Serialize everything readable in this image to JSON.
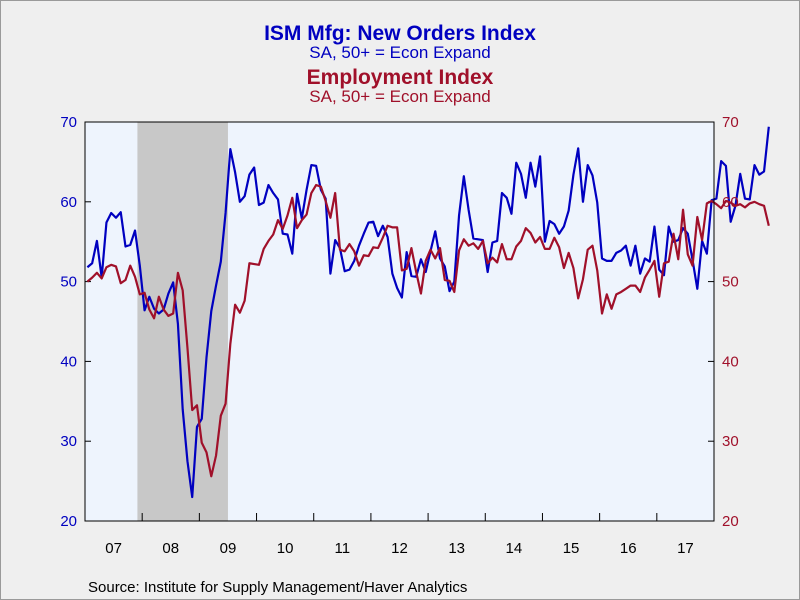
{
  "chart_data": {
    "type": "line",
    "titles": [
      {
        "text": "ISM Mfg: New Orders Index",
        "color": "#0000c0"
      },
      {
        "text": "SA, 50+ = Econ Expand",
        "color": "#0000c0"
      },
      {
        "text": "Employment Index",
        "color": "#a0102a"
      },
      {
        "text": "SA, 50+ = Econ Expand",
        "color": "#a0102a"
      }
    ],
    "source": "Source:  Institute for Supply Management/Haver Analytics",
    "x_labels": [
      "07",
      "08",
      "09",
      "10",
      "11",
      "12",
      "13",
      "14",
      "15",
      "16",
      "17"
    ],
    "x_start": "2007-01",
    "x_end": "2017-12",
    "ylim": [
      20,
      70
    ],
    "yticks": [
      20,
      30,
      40,
      50,
      60,
      70
    ],
    "recession": {
      "start": "2007-12",
      "end": "2009-06"
    },
    "background": "#eef4fd",
    "series": [
      {
        "name": "ISM Mfg: New Orders Index",
        "color": "#0000c0",
        "axis": "left",
        "values": [
          51.8,
          52.3,
          55.1,
          50.5,
          57.4,
          58.6,
          58.0,
          58.7,
          54.4,
          54.6,
          56.4,
          52.0,
          46.4,
          48.1,
          46.6,
          46.0,
          46.5,
          48.5,
          49.9,
          44.7,
          34.0,
          27.5,
          23.0,
          31.8,
          32.8,
          40.5,
          46.3,
          49.5,
          52.5,
          58.6,
          66.6,
          63.7,
          60.0,
          60.7,
          63.4,
          64.3,
          59.6,
          59.9,
          62.1,
          61.1,
          60.3,
          56.0,
          55.9,
          53.5,
          61.0,
          57.9,
          61.5,
          64.6,
          64.5,
          61.5,
          60.4,
          51.0,
          55.2,
          54.2,
          51.3,
          51.5,
          52.6,
          54.5,
          56.0,
          57.4,
          57.5,
          55.7,
          57.0,
          55.6,
          51.0,
          49.2,
          48.0,
          53.7,
          50.7,
          50.6,
          52.8,
          51.2,
          53.8,
          56.3,
          52.9,
          51.9,
          48.8,
          50.0,
          58.3,
          63.2,
          59.0,
          55.4,
          55.3,
          55.2,
          51.2,
          54.9,
          55.1,
          61.1,
          60.5,
          58.5,
          64.9,
          63.5,
          60.5,
          64.9,
          61.9,
          65.7,
          55.0,
          57.6,
          57.2,
          56.0,
          56.9,
          58.9,
          63.4,
          66.7,
          60.0,
          64.6,
          63.3,
          59.9,
          52.9,
          52.6,
          52.6,
          53.6,
          53.9,
          54.5,
          52.0,
          54.5,
          51.0,
          52.9,
          52.5,
          56.9,
          51.5,
          50.8,
          56.9,
          55.0,
          55.2,
          56.7,
          56.0,
          52.7,
          49.1,
          55.1,
          53.5,
          60.2,
          60.4,
          65.1,
          64.5,
          57.5,
          59.5,
          63.5,
          60.4,
          60.3,
          64.6,
          63.4,
          63.8,
          69.4
        ]
      },
      {
        "name": "Employment Index",
        "color": "#a0102a",
        "axis": "right",
        "values": [
          50.0,
          50.5,
          51.1,
          50.4,
          51.8,
          52.1,
          51.9,
          49.8,
          50.2,
          52.0,
          50.6,
          48.4,
          48.6,
          46.5,
          45.4,
          48.1,
          46.5,
          45.7,
          46.0,
          51.1,
          48.9,
          41.7,
          33.9,
          34.5,
          29.8,
          28.6,
          25.6,
          28.2,
          33.2,
          34.7,
          42.2,
          47.1,
          46.1,
          47.6,
          52.3,
          52.2,
          52.1,
          54.1,
          55.1,
          55.9,
          57.7,
          56.6,
          58.3,
          60.5,
          56.7,
          57.7,
          58.4,
          61.1,
          62.1,
          61.9,
          60.1,
          58.0,
          61.1,
          54.0,
          53.8,
          54.7,
          53.8,
          52.0,
          53.3,
          53.2,
          54.3,
          54.2,
          55.5,
          57.0,
          56.8,
          56.8,
          51.4,
          51.6,
          54.2,
          51.2,
          48.5,
          52.6,
          54.0,
          52.9,
          54.2,
          50.2,
          50.1,
          48.7,
          53.9,
          55.3,
          54.5,
          54.8,
          54.1,
          55.1,
          52.3,
          53.0,
          52.4,
          54.7,
          52.8,
          52.8,
          54.4,
          55.1,
          56.7,
          56.1,
          54.9,
          55.6,
          54.1,
          54.1,
          55.5,
          54.3,
          51.7,
          53.6,
          51.7,
          47.9,
          50.3,
          54.0,
          54.5,
          51.4,
          46.0,
          48.4,
          46.6,
          48.4,
          48.7,
          49.1,
          49.5,
          49.5,
          48.7,
          50.5,
          51.5,
          52.6,
          48.1,
          52.3,
          52.5,
          56.0,
          52.8,
          59.0,
          53.4,
          52.0,
          58.1,
          55.2,
          59.8,
          60.1,
          59.7,
          59.2,
          60.1,
          59.9,
          59.5,
          59.7,
          59.3,
          59.8,
          60.0,
          59.7,
          59.5,
          57.0
        ]
      }
    ]
  }
}
